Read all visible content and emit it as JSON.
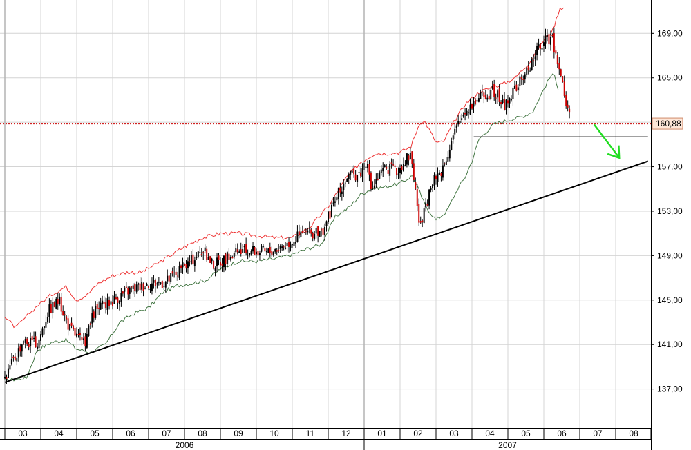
{
  "chart_data": {
    "type": "candlestick",
    "y_axis": {
      "side": "right",
      "tick_labels": [
        "169,00",
        "165,00",
        "161,00",
        "157,00",
        "153,00",
        "149,00",
        "145,00",
        "141,00",
        "137,00"
      ],
      "tick_values": [
        169,
        165,
        161,
        157,
        153,
        149,
        145,
        141,
        137
      ],
      "range": [
        133.5,
        172
      ]
    },
    "x_axis": {
      "months": [
        "03",
        "04",
        "05",
        "06",
        "07",
        "08",
        "09",
        "10",
        "11",
        "12",
        "01",
        "02",
        "03",
        "04",
        "05",
        "06",
        "07",
        "08"
      ],
      "years": [
        {
          "label": "2006",
          "month_index_start": 0
        },
        {
          "label": "2007",
          "month_index_start": 10
        }
      ],
      "grid": true
    },
    "series": [
      {
        "style": "candles",
        "anchors": [
          [
            0,
            138.0
          ],
          [
            0.5,
            141.3
          ],
          [
            0.9,
            141.0
          ],
          [
            1.2,
            144.0
          ],
          [
            1.5,
            145.0
          ],
          [
            1.8,
            142.5
          ],
          [
            2.2,
            141.0
          ],
          [
            2.5,
            144.0
          ],
          [
            3.0,
            145.0
          ],
          [
            3.5,
            146.0
          ],
          [
            4.0,
            146.5
          ],
          [
            4.5,
            146.7
          ],
          [
            5.0,
            148.0
          ],
          [
            5.5,
            149.5
          ],
          [
            5.8,
            148.2
          ],
          [
            6.3,
            149.0
          ],
          [
            6.8,
            149.5
          ],
          [
            7.3,
            149.3
          ],
          [
            7.8,
            150.0
          ],
          [
            8.3,
            151.0
          ],
          [
            8.8,
            151.0
          ],
          [
            9.2,
            154.0
          ],
          [
            9.5,
            156.0
          ],
          [
            9.9,
            156.5
          ],
          [
            10.05,
            157.5
          ],
          [
            10.2,
            155.0
          ],
          [
            10.6,
            157.0
          ],
          [
            10.9,
            156.5
          ],
          [
            11.1,
            157.5
          ],
          [
            11.3,
            158.2
          ],
          [
            11.5,
            153.0
          ],
          [
            11.55,
            151.3
          ],
          [
            11.9,
            155.5
          ],
          [
            12.2,
            157.0
          ],
          [
            12.5,
            160.0
          ],
          [
            12.8,
            162.0
          ],
          [
            13.2,
            163.3
          ],
          [
            13.6,
            163.8
          ],
          [
            13.9,
            162.5
          ],
          [
            14.2,
            164.0
          ],
          [
            14.6,
            166.0
          ],
          [
            14.9,
            168.0
          ],
          [
            15.2,
            168.7
          ],
          [
            15.4,
            166.5
          ],
          [
            15.6,
            163.0
          ],
          [
            15.75,
            160.88
          ]
        ]
      },
      {
        "style": "upper-band",
        "color": "#ee3333",
        "anchors": [
          [
            0,
            143.5
          ],
          [
            0.3,
            142.5
          ],
          [
            0.6,
            143.5
          ],
          [
            0.9,
            144.5
          ],
          [
            1.3,
            145.5
          ],
          [
            1.7,
            146.2
          ],
          [
            2.0,
            145.0
          ],
          [
            2.3,
            145.5
          ],
          [
            2.6,
            146.5
          ],
          [
            3.0,
            147.2
          ],
          [
            3.4,
            147.5
          ],
          [
            3.8,
            147.5
          ],
          [
            4.2,
            148.2
          ],
          [
            4.6,
            149.0
          ],
          [
            5.0,
            149.8
          ],
          [
            5.5,
            150.6
          ],
          [
            6.0,
            151.0
          ],
          [
            6.5,
            151.0
          ],
          [
            7.0,
            150.8
          ],
          [
            7.5,
            150.6
          ],
          [
            8.0,
            150.6
          ],
          [
            8.5,
            151.6
          ],
          [
            9.0,
            153.4
          ],
          [
            9.5,
            156.0
          ],
          [
            9.9,
            157.4
          ],
          [
            10.3,
            158.2
          ],
          [
            10.7,
            158.2
          ],
          [
            11.0,
            158.3
          ],
          [
            11.3,
            158.8
          ],
          [
            11.55,
            161.0
          ],
          [
            11.7,
            161.0
          ],
          [
            12.0,
            159.2
          ],
          [
            12.2,
            159.2
          ],
          [
            12.5,
            161.0
          ],
          [
            12.8,
            162.6
          ],
          [
            13.2,
            163.7
          ],
          [
            13.6,
            164.2
          ],
          [
            13.9,
            164.5
          ],
          [
            14.2,
            165.0
          ],
          [
            14.6,
            166.4
          ],
          [
            15.0,
            168.4
          ],
          [
            15.25,
            169.3
          ],
          [
            15.45,
            171.3
          ],
          [
            15.6,
            171.3
          ]
        ]
      },
      {
        "style": "lower-band",
        "color": "#447744",
        "anchors": [
          [
            0,
            137.8
          ],
          [
            0.4,
            137.9
          ],
          [
            0.6,
            138.0
          ],
          [
            0.9,
            140.5
          ],
          [
            1.3,
            141.2
          ],
          [
            1.7,
            141.4
          ],
          [
            2.0,
            140.6
          ],
          [
            2.4,
            140.3
          ],
          [
            2.8,
            141.0
          ],
          [
            3.2,
            143.0
          ],
          [
            3.6,
            143.8
          ],
          [
            4.0,
            144.3
          ],
          [
            4.4,
            145.7
          ],
          [
            4.8,
            146.3
          ],
          [
            5.2,
            146.5
          ],
          [
            5.6,
            146.8
          ],
          [
            6.0,
            147.8
          ],
          [
            6.5,
            148.5
          ],
          [
            7.0,
            148.5
          ],
          [
            7.5,
            148.7
          ],
          [
            8.0,
            149.1
          ],
          [
            8.4,
            149.6
          ],
          [
            8.8,
            150.0
          ],
          [
            9.2,
            152.5
          ],
          [
            9.6,
            153.4
          ],
          [
            9.9,
            154.5
          ],
          [
            10.2,
            155.0
          ],
          [
            10.6,
            155.2
          ],
          [
            11.0,
            155.5
          ],
          [
            11.35,
            156.2
          ],
          [
            11.7,
            153.5
          ],
          [
            12.0,
            152.2
          ],
          [
            12.3,
            153.0
          ],
          [
            12.6,
            155.0
          ],
          [
            12.8,
            156.0
          ],
          [
            13.0,
            157.5
          ],
          [
            13.2,
            159.5
          ],
          [
            13.6,
            160.8
          ],
          [
            14.0,
            161.2
          ],
          [
            14.4,
            161.5
          ],
          [
            14.7,
            162.0
          ],
          [
            15.0,
            164.0
          ],
          [
            15.2,
            165.2
          ],
          [
            15.3,
            165.2
          ],
          [
            15.45,
            163.5
          ]
        ]
      }
    ],
    "trendline": {
      "from": [
        0,
        137.6
      ],
      "to": [
        17.9,
        157.5
      ],
      "color": "#000000"
    },
    "support_line": {
      "from": [
        13.05,
        159.7
      ],
      "to": [
        17.9,
        159.7
      ],
      "color": "#000000"
    },
    "horizontal_level": {
      "value": 160.88,
      "label": "160,88",
      "color": "#cc0000"
    },
    "arrow": {
      "from": [
        16.4,
        160.8
      ],
      "to": [
        17.1,
        157.8
      ],
      "color": "#22dd22"
    }
  }
}
